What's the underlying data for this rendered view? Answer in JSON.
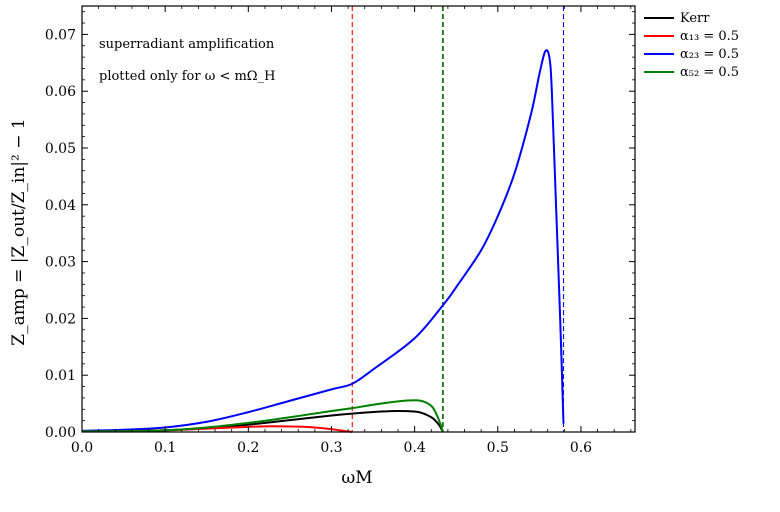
{
  "chart_data": {
    "type": "line",
    "xlabel": "ωM",
    "ylabel": "Z_amp = |Z_out/Z_in|² − 1",
    "xlim": [
      0.0,
      0.665
    ],
    "ylim": [
      0.0,
      0.075
    ],
    "xticks": [
      "0.0",
      "0.1",
      "0.2",
      "0.3",
      "0.4",
      "0.5",
      "0.6"
    ],
    "yticks": [
      "0.00",
      "0.01",
      "0.02",
      "0.03",
      "0.04",
      "0.05",
      "0.06",
      "0.07"
    ],
    "annotations": [
      "superradiant amplification",
      "plotted only for ω < mΩ_H"
    ],
    "legend_position": "outside-top-right",
    "series": [
      {
        "name": "Kerr",
        "color": "#000000",
        "x": [
          0.0,
          0.05,
          0.1,
          0.15,
          0.2,
          0.25,
          0.3,
          0.33,
          0.36,
          0.38,
          0.4,
          0.41,
          0.42,
          0.425,
          0.43,
          0.434
        ],
        "y": [
          0.0001,
          0.00015,
          0.0003,
          0.0007,
          0.0013,
          0.0021,
          0.0029,
          0.0033,
          0.0036,
          0.0037,
          0.0036,
          0.0033,
          0.0026,
          0.002,
          0.0011,
          0.0
        ]
      },
      {
        "name": "α₁₃ = 0.5",
        "color": "#ff0000",
        "x": [
          0.0,
          0.05,
          0.1,
          0.15,
          0.2,
          0.22,
          0.24,
          0.26,
          0.28,
          0.3,
          0.31,
          0.32,
          0.325
        ],
        "y": [
          0.0001,
          0.00015,
          0.0003,
          0.0006,
          0.0009,
          0.001,
          0.001,
          0.00095,
          0.0008,
          0.0005,
          0.0003,
          0.0001,
          0.0
        ]
      },
      {
        "name": "α₂₃ = 0.5",
        "color": "#0000ff",
        "x": [
          0.0,
          0.05,
          0.1,
          0.15,
          0.2,
          0.25,
          0.3,
          0.325,
          0.35,
          0.4,
          0.435,
          0.45,
          0.48,
          0.5,
          0.52,
          0.54,
          0.55,
          0.557,
          0.562,
          0.565,
          0.57,
          0.575,
          0.579
        ],
        "y": [
          0.0002,
          0.0004,
          0.0008,
          0.0018,
          0.0035,
          0.0055,
          0.0075,
          0.0085,
          0.011,
          0.0165,
          0.0225,
          0.0255,
          0.032,
          0.038,
          0.0455,
          0.056,
          0.063,
          0.067,
          0.066,
          0.06,
          0.04,
          0.02,
          0.0015
        ]
      },
      {
        "name": "α₅₂ = 0.5",
        "color": "#008000",
        "x": [
          0.0,
          0.05,
          0.1,
          0.15,
          0.2,
          0.25,
          0.3,
          0.325,
          0.35,
          0.38,
          0.4,
          0.41,
          0.42,
          0.425,
          0.43,
          0.434
        ],
        "y": [
          0.0001,
          0.00015,
          0.0003,
          0.0008,
          0.0016,
          0.0026,
          0.0037,
          0.0042,
          0.0048,
          0.0054,
          0.0056,
          0.0054,
          0.0046,
          0.0035,
          0.0018,
          0.0
        ]
      }
    ],
    "vlines": [
      {
        "x": 0.325,
        "color": "#ff0000"
      },
      {
        "x": 0.434,
        "color": "#006400"
      },
      {
        "x": 0.579,
        "color": "#0000ff"
      }
    ]
  }
}
